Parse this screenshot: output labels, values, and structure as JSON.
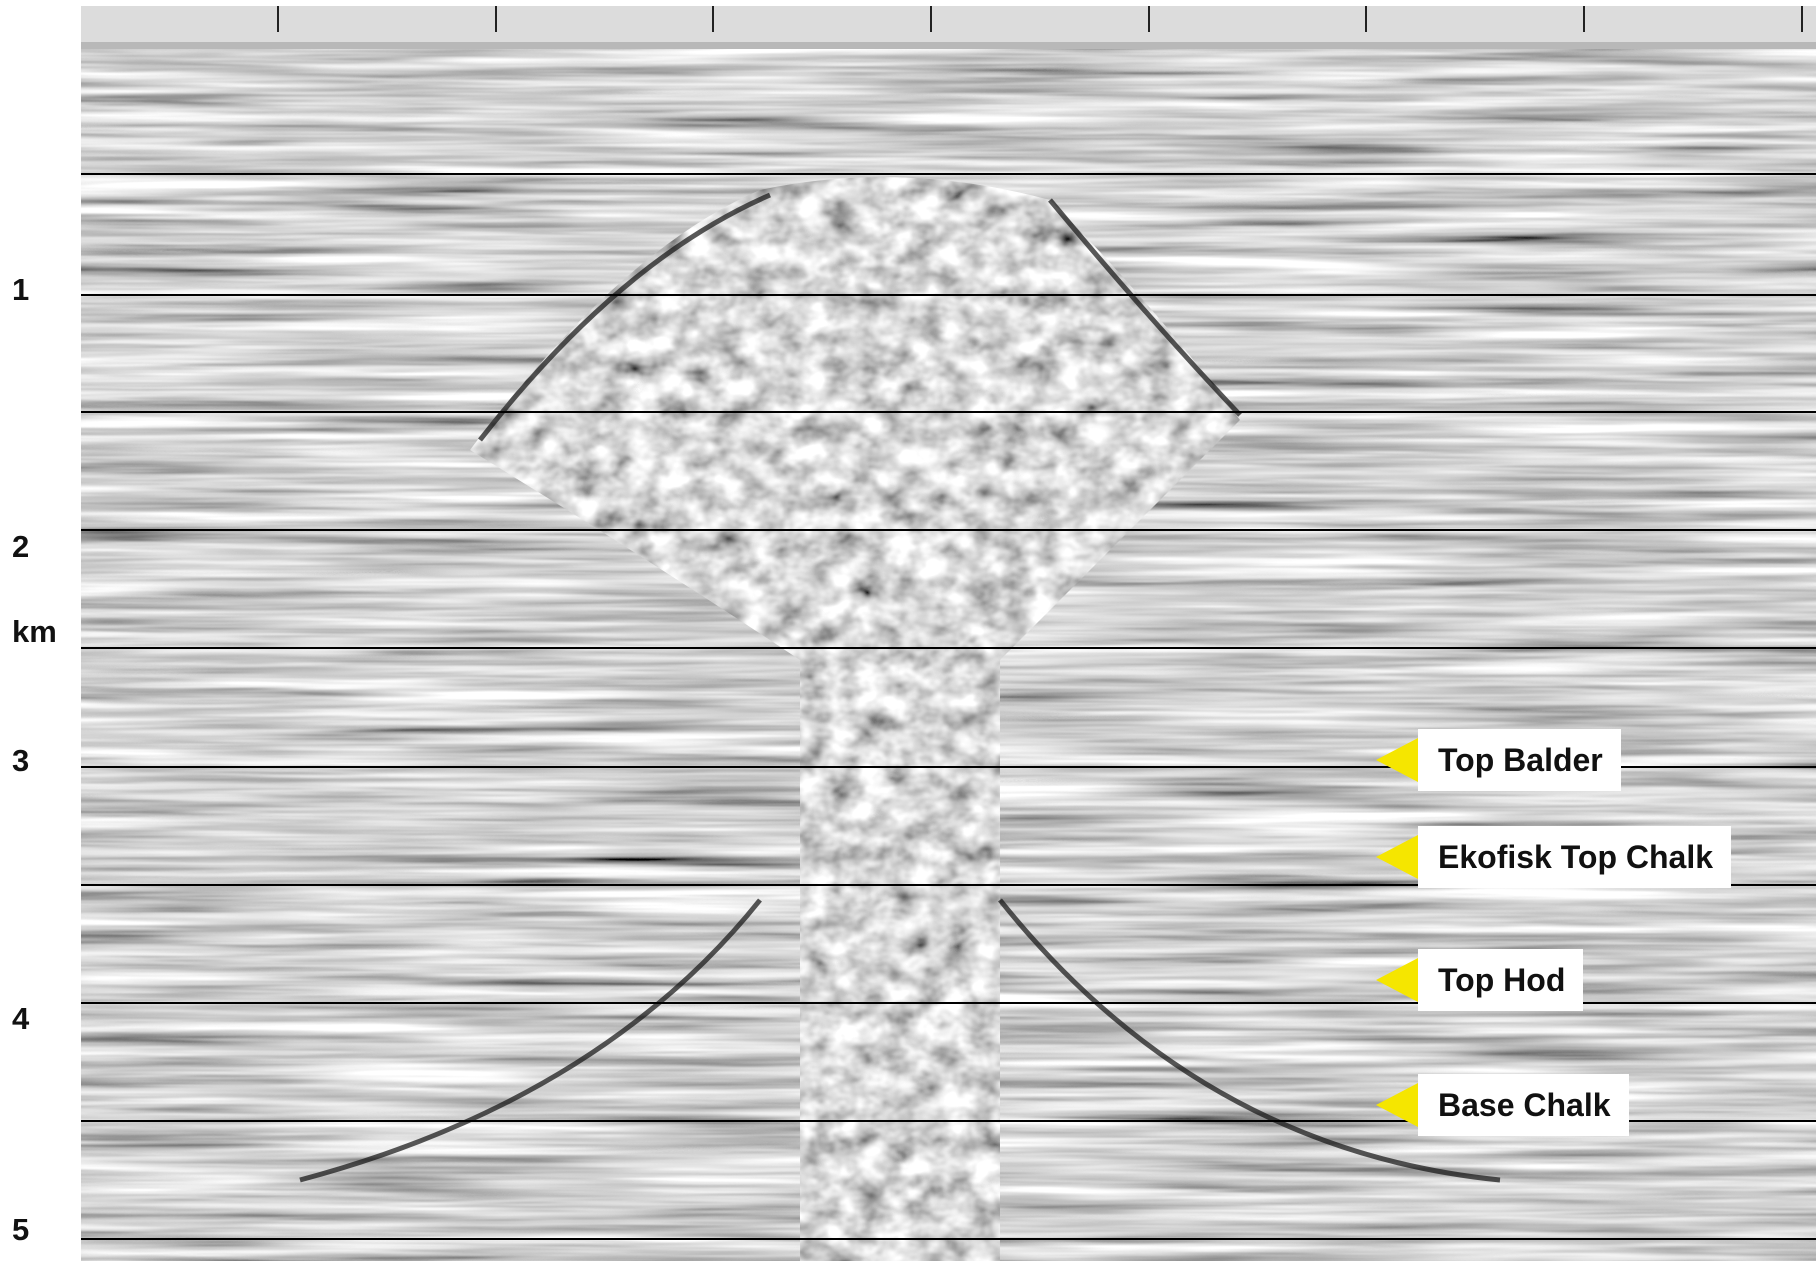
{
  "depth_axis": {
    "ticks": [
      "1",
      "2",
      "3",
      "4",
      "5"
    ],
    "unit": "km"
  },
  "horizons": [
    {
      "label": "Top Balder"
    },
    {
      "label": "Ekofisk Top Chalk"
    },
    {
      "label": "Top Hod"
    },
    {
      "label": "Base Chalk"
    }
  ]
}
